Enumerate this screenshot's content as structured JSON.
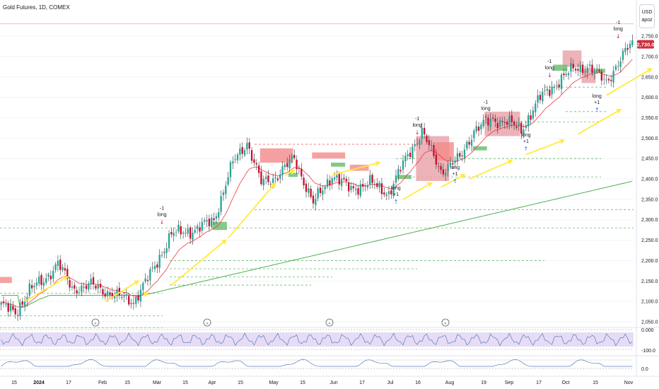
{
  "header": {
    "title": "Gold Futures, 1D, COMEX"
  },
  "scale_box": {
    "currency": "USD",
    "mode": "apoz"
  },
  "price_tag": {
    "value": "2,730.0",
    "color": "#cc2f3c"
  },
  "colors": {
    "up": "#26a69a",
    "down": "#ef5350",
    "candle_up": "#26a69a",
    "candle_down": "#c8102e",
    "ema_fast": "#f23645",
    "sma_slow": "#4caf50",
    "arrow": "#ffeb3b",
    "sell_zone": "#f48a8a",
    "buy_zone": "#66bb6a",
    "supply_box": "#e8a0a8",
    "rsi_line": "#5b7bb8",
    "rsi_band": "#e6dcf5",
    "bg": "#ffffff"
  },
  "chart_data": {
    "type": "candlestick",
    "title": "Gold Futures, 1D, COMEX",
    "ylim": [
      2050,
      2790
    ],
    "y_ticks": [
      "2,750.0",
      "2,700.0",
      "2,650.0",
      "2,600.0",
      "2,550.0",
      "2,500.0",
      "2,450.0",
      "2,400.0",
      "2,350.0",
      "2,300.0",
      "2,250.0",
      "2,200.0",
      "2,150.0",
      "2,100.0",
      "2,050.0"
    ],
    "x_ticks": [
      "15",
      "2024",
      "17",
      "Feb",
      "15",
      "Mar",
      "15",
      "Apr",
      "15",
      "May",
      "15",
      "Jun",
      "17",
      "Jul",
      "16",
      "Aug",
      "19",
      "Sep",
      "17",
      "Oct",
      "15",
      "Nov"
    ],
    "grid": true,
    "last_price": "2,730.0",
    "ohlc_path_anchors": [
      {
        "i": 0,
        "c": 2092
      },
      {
        "i": 6,
        "c": 2070
      },
      {
        "i": 12,
        "c": 2130
      },
      {
        "i": 18,
        "c": 2150
      },
      {
        "i": 24,
        "c": 2195
      },
      {
        "i": 30,
        "c": 2130
      },
      {
        "i": 38,
        "c": 2140
      },
      {
        "i": 48,
        "c": 2115
      },
      {
        "i": 56,
        "c": 2100
      },
      {
        "i": 64,
        "c": 2175
      },
      {
        "i": 72,
        "c": 2265
      },
      {
        "i": 82,
        "c": 2275
      },
      {
        "i": 90,
        "c": 2300
      },
      {
        "i": 98,
        "c": 2440
      },
      {
        "i": 104,
        "c": 2490
      },
      {
        "i": 110,
        "c": 2390
      },
      {
        "i": 116,
        "c": 2405
      },
      {
        "i": 124,
        "c": 2450
      },
      {
        "i": 132,
        "c": 2340
      },
      {
        "i": 140,
        "c": 2410
      },
      {
        "i": 148,
        "c": 2375
      },
      {
        "i": 156,
        "c": 2390
      },
      {
        "i": 164,
        "c": 2365
      },
      {
        "i": 172,
        "c": 2460
      },
      {
        "i": 178,
        "c": 2515
      },
      {
        "i": 186,
        "c": 2420
      },
      {
        "i": 194,
        "c": 2450
      },
      {
        "i": 200,
        "c": 2520
      },
      {
        "i": 208,
        "c": 2545
      },
      {
        "i": 214,
        "c": 2540
      },
      {
        "i": 220,
        "c": 2520
      },
      {
        "i": 228,
        "c": 2600
      },
      {
        "i": 236,
        "c": 2640
      },
      {
        "i": 242,
        "c": 2670
      },
      {
        "i": 248,
        "c": 2675
      },
      {
        "i": 256,
        "c": 2640
      },
      {
        "i": 262,
        "c": 2690
      },
      {
        "i": 266,
        "c": 2730
      }
    ],
    "signals": [
      {
        "bar": 68,
        "price": 2300,
        "label_top": "-1",
        "label_bottom": "long",
        "kind": "sell"
      },
      {
        "bar": 167,
        "price": 2350,
        "label_top": "long",
        "label_bottom": "+1",
        "kind": "buy"
      },
      {
        "bar": 176,
        "price": 2520,
        "label_top": "-1",
        "label_bottom": "long",
        "kind": "sell"
      },
      {
        "bar": 192,
        "price": 2400,
        "label_top": "long",
        "label_bottom": "+1",
        "kind": "buy"
      },
      {
        "bar": 205,
        "price": 2560,
        "label_top": "-1",
        "label_bottom": "long",
        "kind": "sell"
      },
      {
        "bar": 222,
        "price": 2480,
        "label_top": "long",
        "label_bottom": "+1",
        "kind": "buy"
      },
      {
        "bar": 232,
        "price": 2660,
        "label_top": "-1",
        "label_bottom": "long",
        "kind": "sell"
      },
      {
        "bar": 252,
        "price": 2575,
        "label_top": "long",
        "label_bottom": "+1",
        "kind": "buy"
      },
      {
        "bar": 261,
        "price": 2755,
        "label_top": "-1",
        "label_bottom": "long",
        "kind": "sell"
      }
    ],
    "rsi_panel": {
      "y_ticks": [
        "0.000",
        "-100.0"
      ]
    },
    "bottom_panel": {
      "y_ticks": [
        "0.0"
      ]
    }
  }
}
